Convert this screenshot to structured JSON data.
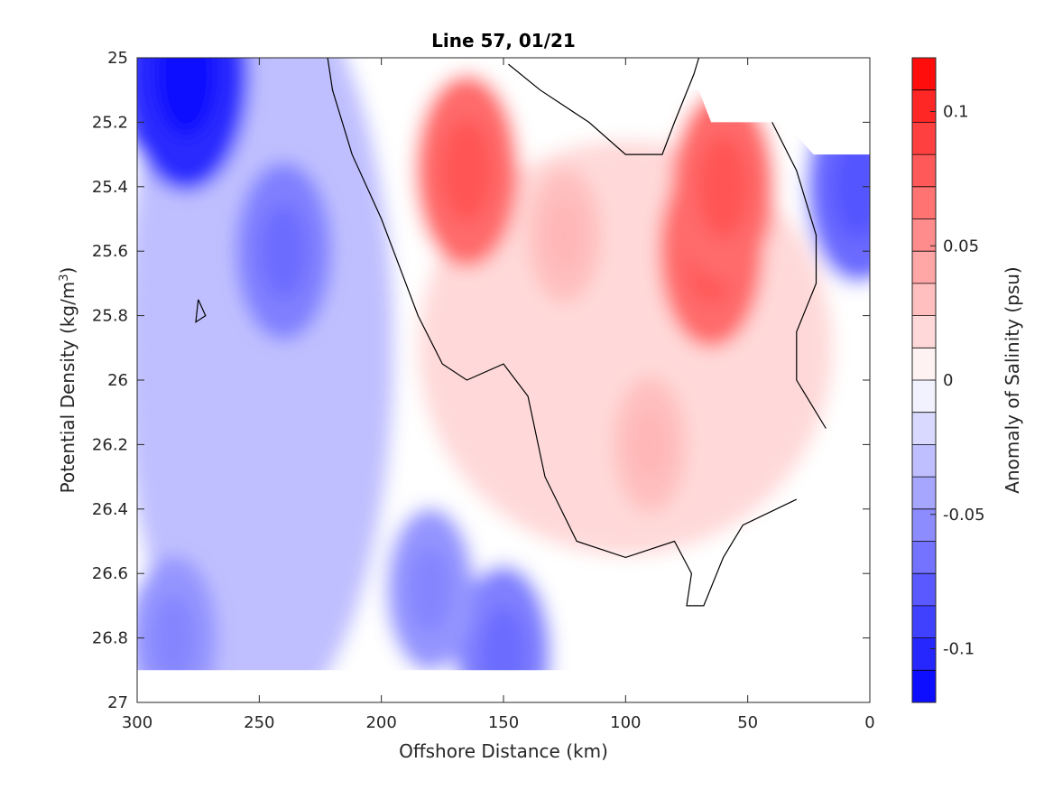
{
  "chart_data": {
    "type": "heatmap",
    "subtype": "filled-contour",
    "title": "Line 57, 01/21",
    "xlabel": "Offshore Distance (km)",
    "ylabel_main": "Potential Density (kg/m",
    "ylabel_sup": "3",
    "ylabel_close": ")",
    "colorbar_label": "Anomaly of Salinity (psu)",
    "x_reversed": true,
    "xlim": [
      0,
      300
    ],
    "ylim": [
      25,
      27
    ],
    "y_reversed": true,
    "x_ticks": [
      "300",
      "250",
      "200",
      "150",
      "100",
      "50",
      "0"
    ],
    "x_tick_values": [
      300,
      250,
      200,
      150,
      100,
      50,
      0
    ],
    "y_ticks": [
      "25",
      "25.2",
      "25.4",
      "25.6",
      "25.8",
      "26",
      "26.2",
      "26.4",
      "26.6",
      "26.8",
      "27"
    ],
    "y_tick_values": [
      25,
      25.2,
      25.4,
      25.6,
      25.8,
      26,
      26.2,
      26.4,
      26.6,
      26.8,
      27
    ],
    "colorbar_ticks": [
      "0.1",
      "0.05",
      "0",
      "-0.05",
      "-0.1"
    ],
    "colorbar_tick_values": [
      0.1,
      0.05,
      0,
      -0.05,
      -0.1
    ],
    "clim": [
      -0.12,
      0.12
    ],
    "contour_levels": 20,
    "colormap_positive": "#ff0000",
    "colormap_zero": "#ffffff",
    "colormap_negative": "#0000ff",
    "zero_contour_color": "#000000",
    "data_extent": {
      "x_min": 0,
      "x_max": 300,
      "y_min": 25,
      "y_max": 26.9
    },
    "features": [
      {
        "sign": "negative",
        "x": 280,
        "y": 25.05,
        "value": -0.1
      },
      {
        "sign": "negative",
        "x": 240,
        "y": 25.6,
        "value": -0.06
      },
      {
        "sign": "negative",
        "x": 150,
        "y": 26.85,
        "value": -0.06
      },
      {
        "sign": "negative",
        "x": 285,
        "y": 26.8,
        "value": -0.05
      },
      {
        "sign": "negative",
        "x": 180,
        "y": 26.65,
        "value": -0.05
      },
      {
        "sign": "negative",
        "x": 5,
        "y": 25.4,
        "value": -0.07
      },
      {
        "sign": "positive",
        "x": 165,
        "y": 25.35,
        "value": 0.07
      },
      {
        "sign": "positive",
        "x": 65,
        "y": 25.6,
        "value": 0.07
      },
      {
        "sign": "positive",
        "x": 60,
        "y": 25.4,
        "value": 0.07
      },
      {
        "sign": "positive",
        "x": 125,
        "y": 25.55,
        "value": 0.03
      },
      {
        "sign": "positive",
        "x": 90,
        "y": 26.2,
        "value": 0.03
      }
    ]
  }
}
